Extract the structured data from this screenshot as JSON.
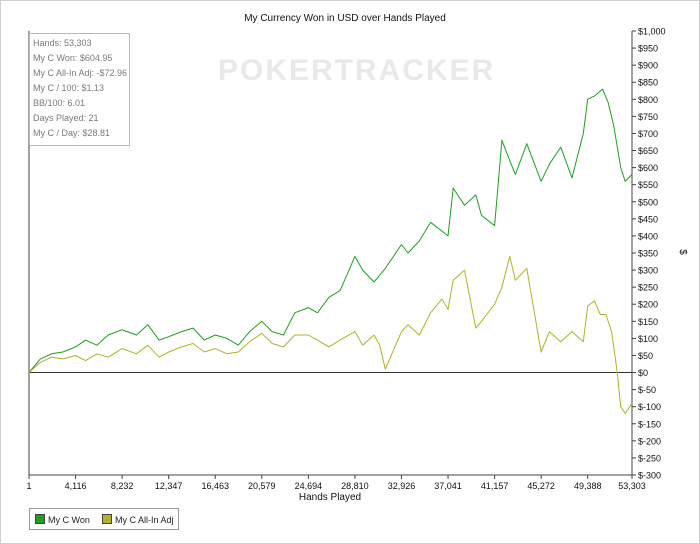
{
  "chart_data": {
    "type": "line",
    "title": "My Currency Won in USD over Hands Played",
    "xlabel": "Hands Played",
    "ylabel": "$",
    "watermark": "POKERTRACKER",
    "xlim": [
      1,
      53303
    ],
    "ylim": [
      -300,
      1000
    ],
    "x_ticks": [
      1,
      4116,
      8232,
      12347,
      16463,
      20579,
      24694,
      28810,
      32926,
      37041,
      41157,
      45272,
      49388,
      53303
    ],
    "x_tick_labels": [
      "1",
      "4,116",
      "8,232",
      "12,347",
      "16,463",
      "20,579",
      "24,694",
      "28,810",
      "32,926",
      "37,041",
      "41,157",
      "45,272",
      "49,388",
      "53,303"
    ],
    "y_ticks": [
      1000,
      950,
      900,
      850,
      800,
      750,
      700,
      650,
      600,
      550,
      500,
      450,
      400,
      350,
      300,
      250,
      200,
      150,
      100,
      50,
      0,
      -50,
      -100,
      -150,
      -200,
      -250,
      -300
    ],
    "y_tick_labels": [
      "$1,000",
      "$950",
      "$900",
      "$850",
      "$800",
      "$750",
      "$700",
      "$650",
      "$600",
      "$550",
      "$500",
      "$450",
      "$400",
      "$350",
      "$300",
      "$250",
      "$200",
      "$150",
      "$100",
      "$50",
      "$0",
      "$-50",
      "$-100",
      "$-150",
      "$-200",
      "$-250",
      "$-300"
    ],
    "grid": false,
    "legend_position": "bottom-left",
    "series": [
      {
        "name": "My C Won",
        "color": "#1ea01e",
        "x": [
          1,
          1000,
          2000,
          3000,
          4116,
          5000,
          6000,
          7000,
          8232,
          9500,
          10500,
          11500,
          12347,
          13500,
          14500,
          15500,
          16463,
          17500,
          18500,
          19500,
          20579,
          21500,
          22500,
          23500,
          24694,
          25500,
          26500,
          27500,
          28810,
          29500,
          30500,
          31500,
          32926,
          33500,
          34500,
          35500,
          37041,
          37500,
          38500,
          39500,
          40000,
          41157,
          41800,
          42500,
          43000,
          44000,
          45272,
          46000,
          47000,
          48000,
          49000,
          49388,
          50000,
          50700,
          51200,
          51700,
          52300,
          52700,
          53303
        ],
        "y": [
          0,
          40,
          55,
          60,
          75,
          95,
          80,
          110,
          125,
          110,
          140,
          95,
          105,
          120,
          130,
          95,
          110,
          100,
          80,
          120,
          150,
          120,
          110,
          175,
          190,
          175,
          220,
          240,
          340,
          300,
          265,
          305,
          375,
          350,
          385,
          440,
          400,
          540,
          490,
          520,
          460,
          430,
          680,
          620,
          580,
          670,
          560,
          610,
          660,
          570,
          700,
          800,
          810,
          830,
          790,
          720,
          600,
          560,
          580
        ]
      },
      {
        "name": "My C All-In Adj",
        "color": "#b2b226",
        "x": [
          1,
          1000,
          2000,
          3000,
          4116,
          5000,
          6000,
          7000,
          8232,
          9500,
          10500,
          11500,
          12347,
          13500,
          14500,
          15500,
          16463,
          17500,
          18500,
          19500,
          20579,
          21500,
          22500,
          23500,
          24694,
          25500,
          26500,
          27500,
          28810,
          29500,
          30500,
          31000,
          31500,
          32926,
          33500,
          34500,
          35500,
          36500,
          37041,
          37500,
          38500,
          39500,
          40000,
          41157,
          41800,
          42500,
          43000,
          44000,
          45272,
          46000,
          47000,
          48000,
          49000,
          49388,
          50000,
          50500,
          51000,
          51500,
          52000,
          52300,
          52700,
          53303
        ],
        "y": [
          0,
          30,
          45,
          40,
          50,
          35,
          55,
          45,
          70,
          55,
          80,
          45,
          60,
          75,
          85,
          60,
          70,
          55,
          60,
          90,
          115,
          85,
          75,
          110,
          110,
          95,
          75,
          95,
          120,
          80,
          110,
          80,
          10,
          120,
          140,
          110,
          175,
          215,
          185,
          270,
          300,
          130,
          150,
          200,
          250,
          340,
          270,
          305,
          60,
          120,
          90,
          120,
          90,
          195,
          210,
          170,
          170,
          120,
          0,
          -100,
          -120,
          -90
        ]
      }
    ]
  },
  "stats": [
    "Hands: 53,303",
    "My C Won: $604.95",
    "My C All-In Adj: -$72.96",
    "My C / 100: $1.13",
    "BB/100: 6.01",
    "Days Played: 21",
    "My C / Day: $28.81"
  ]
}
